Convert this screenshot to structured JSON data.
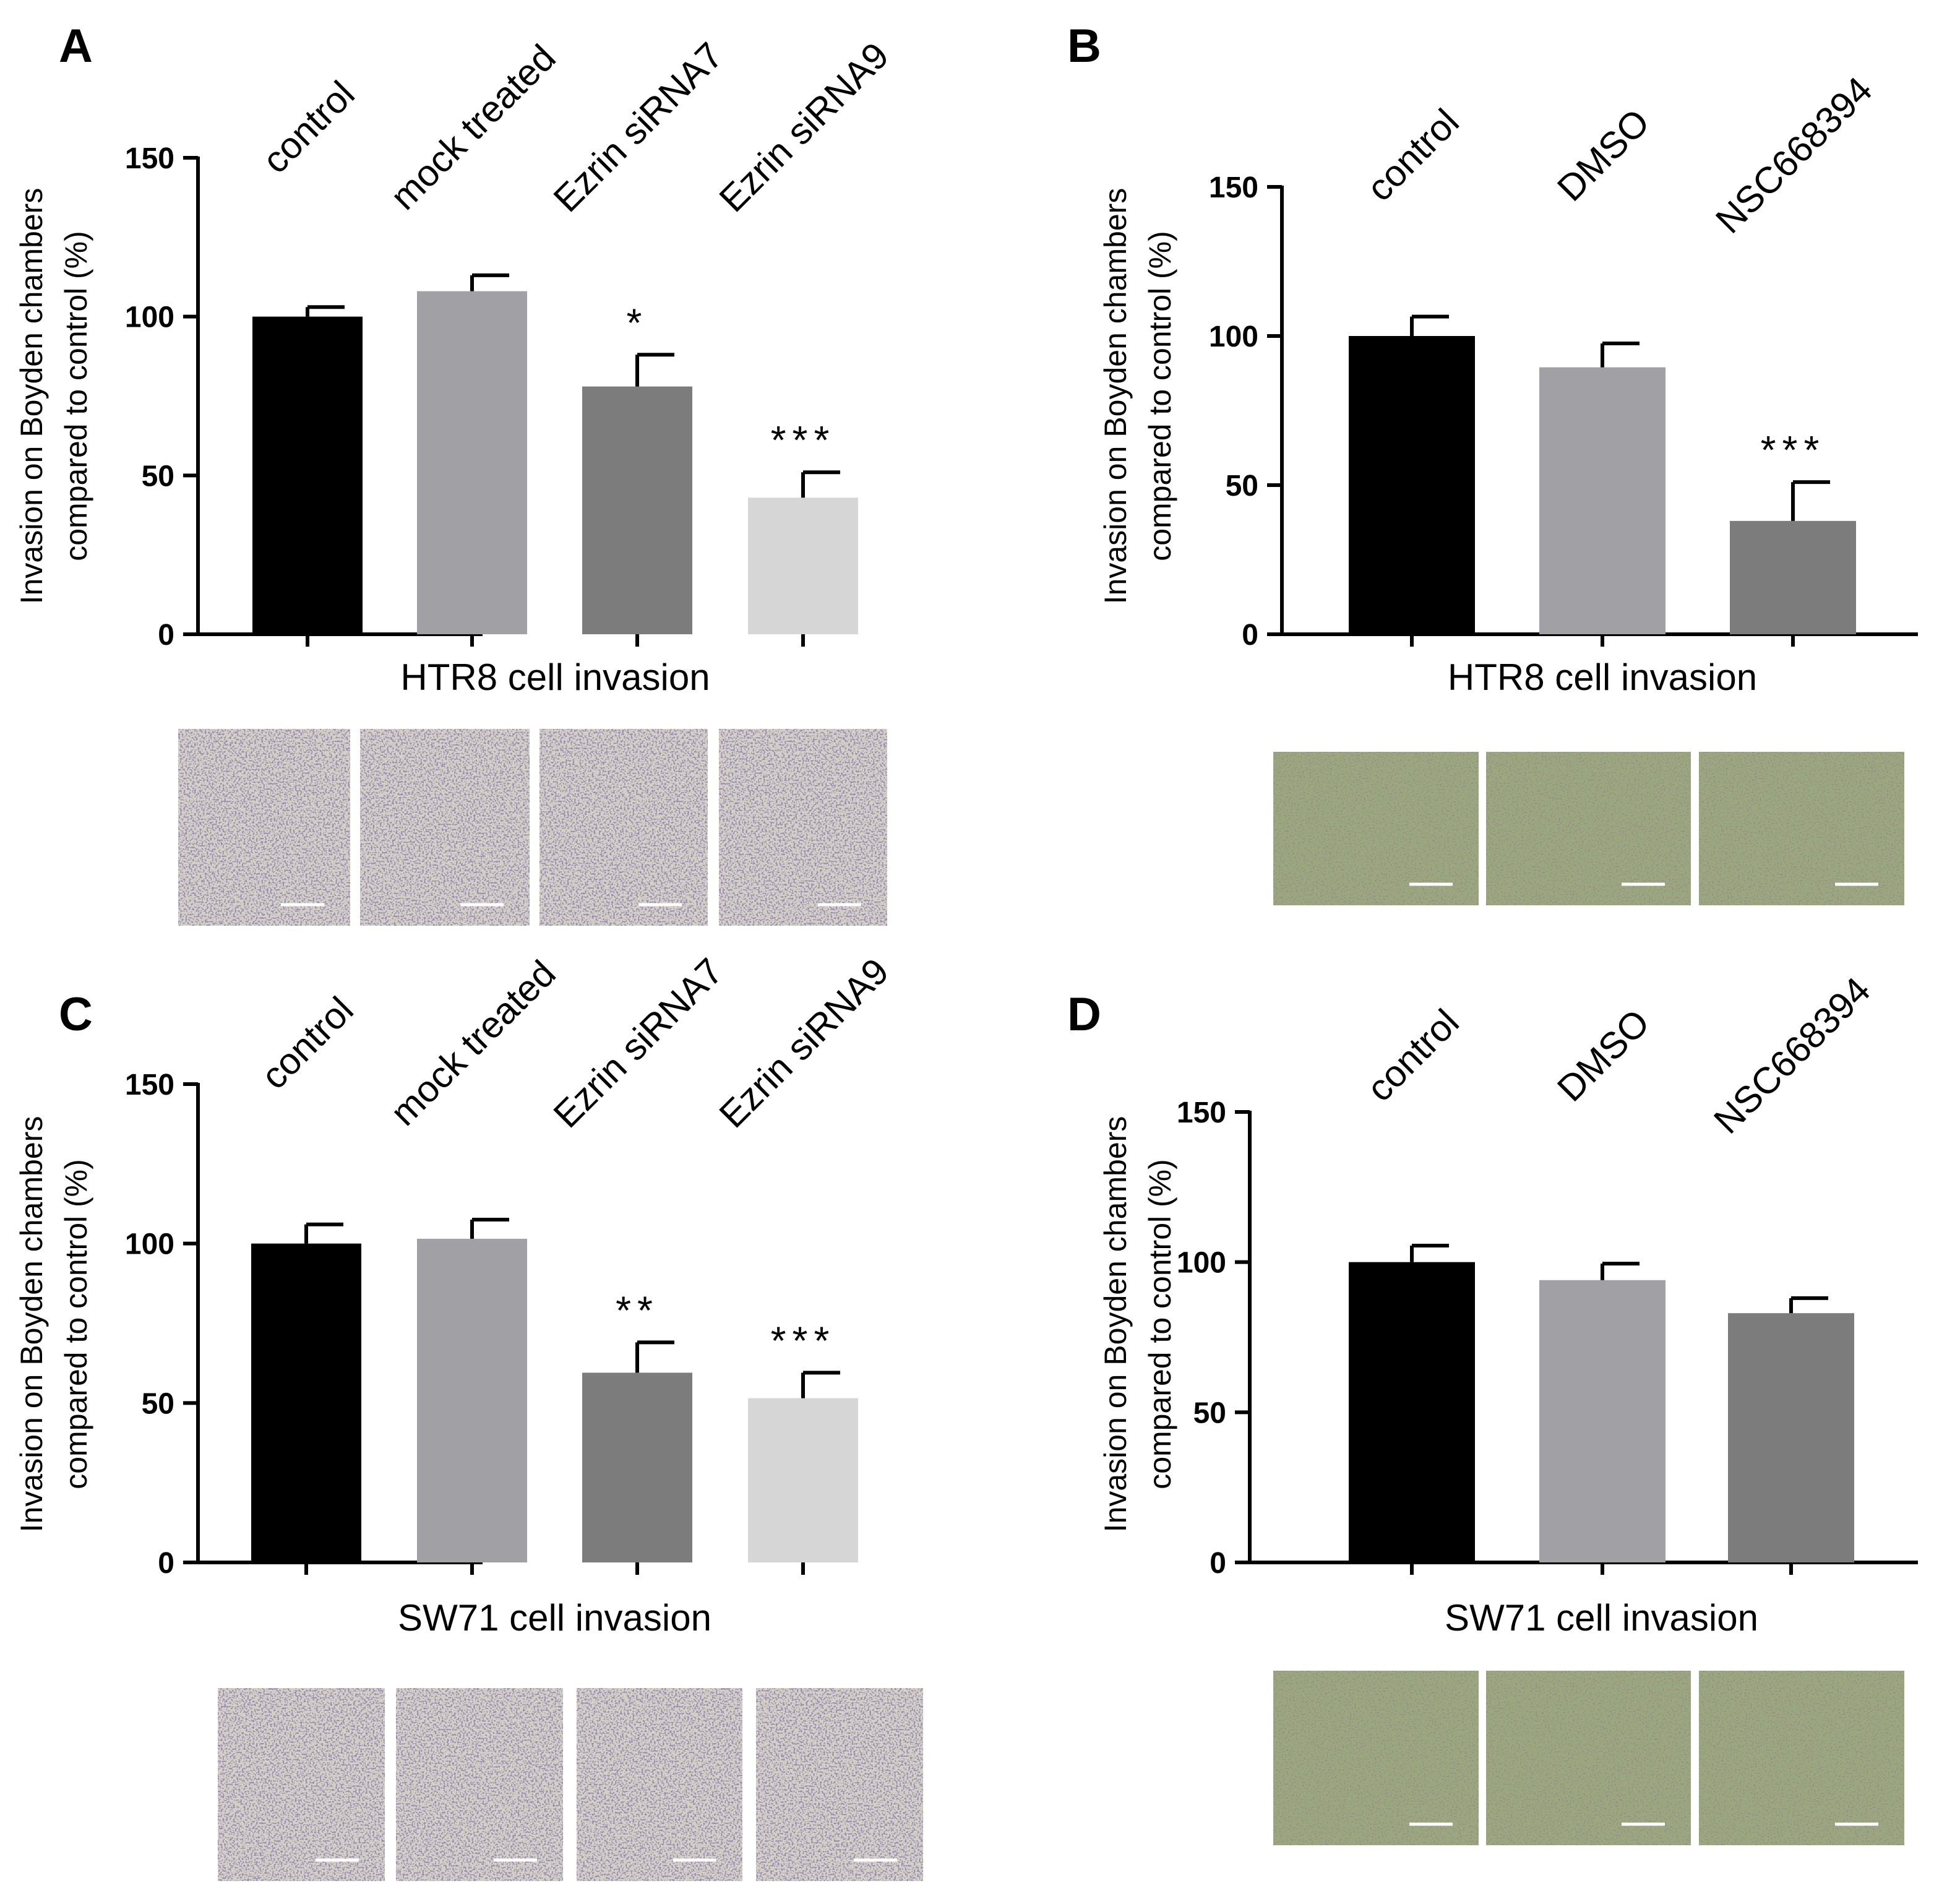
{
  "chart_data": [
    {
      "panel": "A",
      "type": "bar",
      "categories": [
        "control",
        "mock treated",
        "Ezrin siRNA7",
        "Ezrin siRNA9"
      ],
      "values": [
        100,
        108,
        78,
        43
      ],
      "errors": [
        3,
        5,
        10,
        8
      ],
      "significance": [
        "",
        "",
        "*",
        "***"
      ],
      "bar_colors": [
        "#000000",
        "#a0a0a5",
        "#7c7c7c",
        "#d6d6d6"
      ],
      "ylabel_line1": "Invasion  on Boyden chambers",
      "ylabel_line2": "compared to control (%)",
      "xlabel": "HTR8 cell invasion",
      "yticks": [
        "0",
        "50",
        "100",
        "150"
      ],
      "ylim": [
        0,
        150
      ],
      "micrograph_stain": "purple",
      "micrograph_count": 4
    },
    {
      "panel": "B",
      "type": "bar",
      "categories": [
        "control",
        "DMSO",
        "NSC668394"
      ],
      "values": [
        100,
        89.5,
        38
      ],
      "errors": [
        6.5,
        8,
        13
      ],
      "significance": [
        "",
        "",
        "***"
      ],
      "bar_colors": [
        "#000000",
        "#a0a0a5",
        "#7c7c7c"
      ],
      "ylabel_line1": "Invasion  on Boyden chambers",
      "ylabel_line2": "compared to control (%)",
      "xlabel": "HTR8 cell invasion",
      "yticks": [
        "0",
        "50",
        "100",
        "150"
      ],
      "ylim": [
        0,
        150
      ],
      "micrograph_stain": "green",
      "micrograph_count": 3
    },
    {
      "panel": "C",
      "type": "bar",
      "categories": [
        "control",
        "mock treated",
        "Ezrin siRNA7",
        "Ezrin siRNA9"
      ],
      "values": [
        100,
        101.5,
        59.5,
        51.5
      ],
      "errors": [
        6,
        6,
        9.5,
        8
      ],
      "significance": [
        "",
        "",
        "**",
        "***"
      ],
      "bar_colors": [
        "#000000",
        "#a0a0a5",
        "#7c7c7c",
        "#d6d6d6"
      ],
      "ylabel_line1": "Invasion  on Boyden chambers",
      "ylabel_line2": "compared to control (%)",
      "xlabel": "SW71 cell invasion",
      "yticks": [
        "0",
        "50",
        "100",
        "150"
      ],
      "ylim": [
        0,
        150
      ],
      "micrograph_stain": "purple",
      "micrograph_count": 4
    },
    {
      "panel": "D",
      "type": "bar",
      "categories": [
        "control",
        "DMSO",
        "NSC668394"
      ],
      "values": [
        100,
        94,
        83
      ],
      "errors": [
        5.5,
        5.5,
        5
      ],
      "significance": [
        "",
        "",
        ""
      ],
      "bar_colors": [
        "#000000",
        "#a0a0a5",
        "#7c7c7c"
      ],
      "ylabel_line1": "Invasion  on Boyden chambers",
      "ylabel_line2": "compared to control (%)",
      "xlabel": "SW71 cell invasion",
      "yticks": [
        "0",
        "50",
        "100",
        "150"
      ],
      "ylim": [
        0,
        150
      ],
      "micrograph_stain": "green",
      "micrograph_count": 3
    }
  ]
}
